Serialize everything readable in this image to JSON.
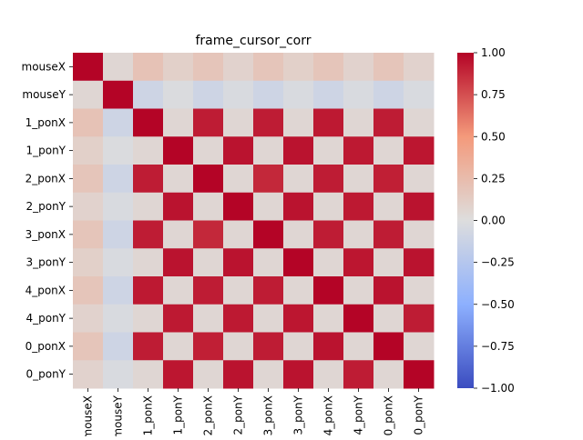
{
  "chart_data": {
    "type": "heatmap",
    "title": "frame_cursor_corr",
    "xlabel": "",
    "ylabel": "",
    "row_labels": [
      "mouseX",
      "mouseY",
      "1_ponX",
      "1_ponY",
      "2_ponX",
      "2_ponY",
      "3_ponX",
      "3_ponY",
      "4_ponX",
      "4_ponY",
      "0_ponX",
      "0_ponY"
    ],
    "col_labels": [
      "mouseX",
      "mouseY",
      "1_ponX",
      "1_ponY",
      "2_ponX",
      "2_ponY",
      "3_ponX",
      "3_ponY",
      "4_ponX",
      "4_ponY",
      "0_ponX",
      "0_ponY"
    ],
    "values": [
      [
        1.0,
        0.05,
        0.2,
        0.1,
        0.18,
        0.08,
        0.18,
        0.1,
        0.18,
        0.08,
        0.18,
        0.08
      ],
      [
        0.05,
        1.0,
        -0.1,
        -0.02,
        -0.1,
        -0.03,
        -0.1,
        -0.03,
        -0.1,
        -0.03,
        -0.1,
        -0.03
      ],
      [
        0.2,
        -0.1,
        1.0,
        0.05,
        0.92,
        0.05,
        0.92,
        0.05,
        0.93,
        0.05,
        0.92,
        0.05
      ],
      [
        0.1,
        -0.02,
        0.05,
        1.0,
        0.05,
        0.95,
        0.05,
        0.95,
        0.05,
        0.93,
        0.05,
        0.94
      ],
      [
        0.18,
        -0.1,
        0.92,
        0.05,
        1.0,
        0.05,
        0.88,
        0.05,
        0.92,
        0.05,
        0.91,
        0.05
      ],
      [
        0.08,
        -0.03,
        0.05,
        0.95,
        0.05,
        1.0,
        0.05,
        0.95,
        0.05,
        0.93,
        0.05,
        0.95
      ],
      [
        0.18,
        -0.1,
        0.92,
        0.05,
        0.88,
        0.05,
        1.0,
        0.05,
        0.92,
        0.05,
        0.92,
        0.05
      ],
      [
        0.1,
        -0.03,
        0.05,
        0.95,
        0.05,
        0.95,
        0.05,
        1.0,
        0.05,
        0.94,
        0.05,
        0.95
      ],
      [
        0.18,
        -0.1,
        0.93,
        0.05,
        0.92,
        0.05,
        0.92,
        0.05,
        1.0,
        0.05,
        0.95,
        0.05
      ],
      [
        0.08,
        -0.03,
        0.05,
        0.93,
        0.05,
        0.93,
        0.05,
        0.94,
        0.05,
        1.0,
        0.05,
        0.92
      ],
      [
        0.18,
        -0.1,
        0.92,
        0.05,
        0.91,
        0.05,
        0.92,
        0.05,
        0.95,
        0.05,
        1.0,
        0.05
      ],
      [
        0.08,
        -0.03,
        0.05,
        0.94,
        0.05,
        0.95,
        0.05,
        0.95,
        0.05,
        0.92,
        0.05,
        1.0
      ]
    ],
    "vmin": -1.0,
    "vmax": 1.0,
    "colormap": "coolwarm",
    "colorbar_ticks": [
      1.0,
      0.75,
      0.5,
      0.25,
      0.0,
      -0.25,
      -0.5,
      -0.75,
      -1.0
    ],
    "colorbar_tick_labels": [
      "1.00",
      "0.75",
      "0.50",
      "0.25",
      "0.00",
      "−0.25",
      "−0.50",
      "−0.75",
      "−1.00"
    ],
    "grid": false,
    "legend": "colorbar-right"
  }
}
